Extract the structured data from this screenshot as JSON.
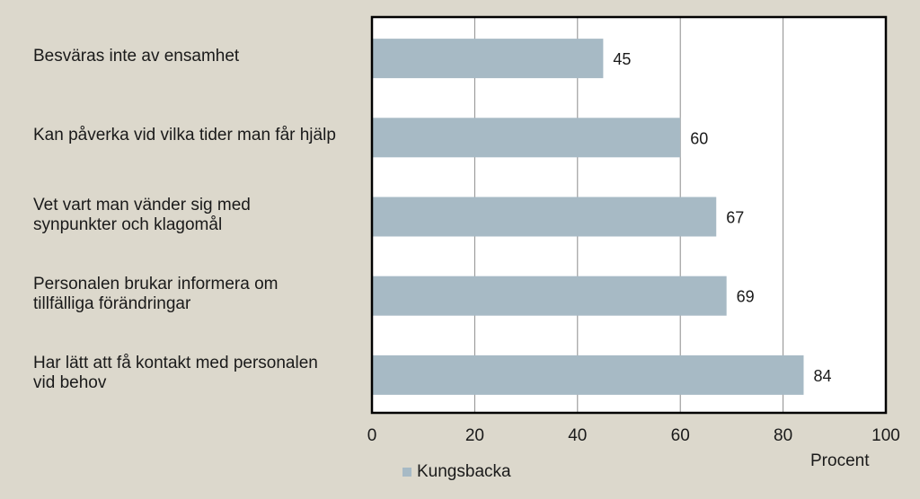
{
  "chart_data": {
    "type": "bar",
    "orientation": "horizontal",
    "categories": [
      "Besväras inte av ensamhet",
      "Kan påverka vid vilka tider man får hjälp",
      "Vet vart man vänder sig med synpunkter och klagomål",
      "Personalen brukar informera om tillfälliga förändringar",
      "Har lätt att få kontakt med personalen vid behov"
    ],
    "series": [
      {
        "name": "Kungsbacka",
        "values": [
          45,
          60,
          67,
          69,
          84
        ],
        "color": "#a7bac5"
      }
    ],
    "data_labels": [
      "45",
      "60",
      "67",
      "69",
      "84"
    ],
    "xlabel": "Procent",
    "xlim": [
      0,
      100
    ],
    "xticks": [
      "0",
      "20",
      "40",
      "60",
      "80",
      "100"
    ],
    "grid": true,
    "legend_position": "bottom-left"
  },
  "colors": {
    "background": "#dcd8cc",
    "plot_area": "#ffffff",
    "bar": "#a7bac5",
    "gridline": "#8c8c8c",
    "frame": "#000000"
  }
}
